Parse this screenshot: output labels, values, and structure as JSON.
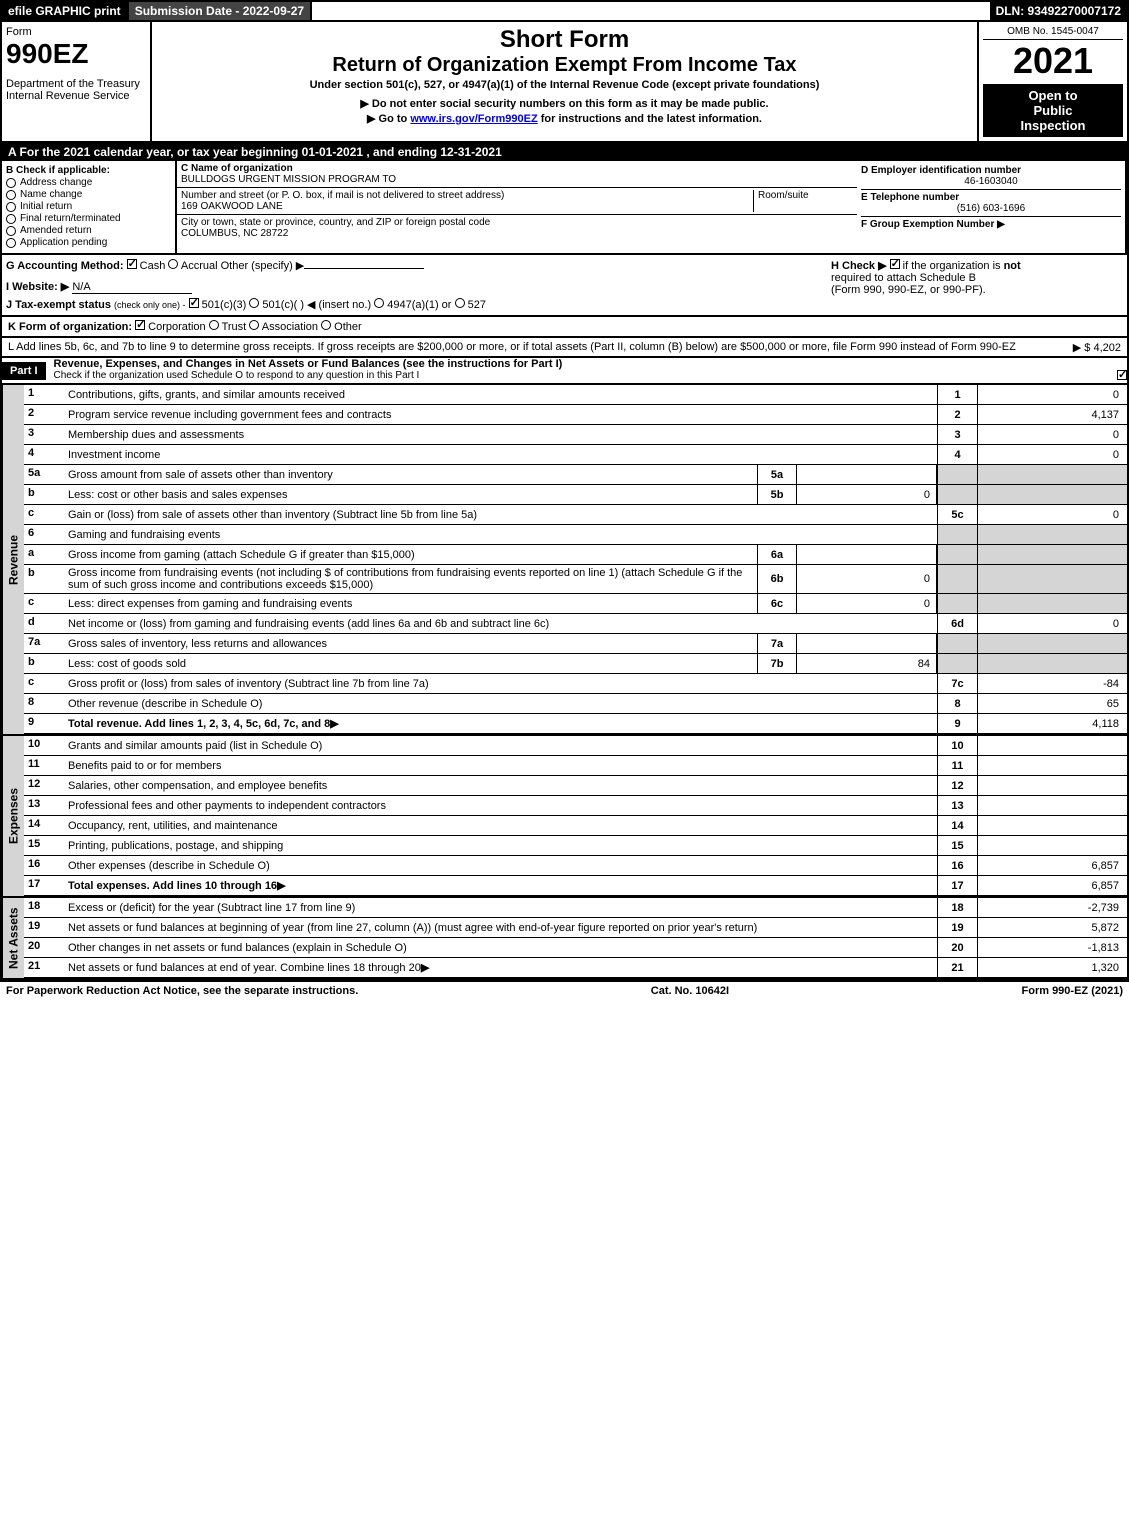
{
  "top": {
    "efile": "efile GRAPHIC print",
    "submission": "Submission Date - 2022-09-27",
    "dln": "DLN: 93492270007172"
  },
  "header": {
    "form_label": "Form",
    "form_number": "990EZ",
    "dept1": "Department of the Treasury",
    "dept2": "Internal Revenue Service",
    "short_form": "Short Form",
    "title": "Return of Organization Exempt From Income Tax",
    "sub1": "Under section 501(c), 527, or 4947(a)(1) of the Internal Revenue Code (except private foundations)",
    "sub2": "▶ Do not enter social security numbers on this form as it may be made public.",
    "sub3_pre": "▶ Go to ",
    "sub3_link": "www.irs.gov/Form990EZ",
    "sub3_post": " for instructions and the latest information.",
    "omb": "OMB No. 1545-0047",
    "year": "2021",
    "open1": "Open to",
    "open2": "Public",
    "open3": "Inspection"
  },
  "row_a": "A  For the 2021 calendar year, or tax year beginning 01-01-2021 , and ending 12-31-2021",
  "col_b": {
    "label": "B  Check if applicable:",
    "items": [
      "Address change",
      "Name change",
      "Initial return",
      "Final return/terminated",
      "Amended return",
      "Application pending"
    ]
  },
  "col_c": {
    "name_label": "C Name of organization",
    "name": "BULLDOGS URGENT MISSION PROGRAM TO",
    "street_label": "Number and street (or P. O. box, if mail is not delivered to street address)",
    "room_label": "Room/suite",
    "street": "169 OAKWOOD LANE",
    "city_label": "City or town, state or province, country, and ZIP or foreign postal code",
    "city": "COLUMBUS, NC  28722"
  },
  "col_d": {
    "ein_label": "D Employer identification number",
    "ein": "46-1603040",
    "phone_label": "E Telephone number",
    "phone": "(516) 603-1696",
    "group_label": "F Group Exemption Number   ▶"
  },
  "section_g": {
    "g_label": "G Accounting Method:",
    "g_cash": "Cash",
    "g_accrual": "Accrual",
    "g_other": "Other (specify) ▶",
    "i_label": "I Website: ▶",
    "i_value": "N/A",
    "j_label": "J Tax-exempt status",
    "j_note": "(check only one) -",
    "j1": "501(c)(3)",
    "j2": "501(c)(  ) ◀ (insert no.)",
    "j3": "4947(a)(1) or",
    "j4": "527",
    "h_label": "H  Check ▶",
    "h_text1": "if the organization is ",
    "h_text1b": "not",
    "h_text2": "required to attach Schedule B",
    "h_text3": "(Form 990, 990-EZ, or 990-PF)."
  },
  "k_line": {
    "label": "K Form of organization:",
    "opts": [
      "Corporation",
      "Trust",
      "Association",
      "Other"
    ]
  },
  "l_line": {
    "text": "L Add lines 5b, 6c, and 7b to line 9 to determine gross receipts. If gross receipts are $200,000 or more, or if total assets (Part II, column (B) below) are $500,000 or more, file Form 990 instead of Form 990-EZ",
    "amount": "▶ $ 4,202"
  },
  "part1": {
    "header": "Part I",
    "title": "Revenue, Expenses, and Changes in Net Assets or Fund Balances (see the instructions for Part I)",
    "check_note": "Check if the organization used Schedule O to respond to any question in this Part I"
  },
  "sections": {
    "revenue": "Revenue",
    "expenses": "Expenses",
    "netassets": "Net Assets"
  },
  "lines": [
    {
      "n": "1",
      "d": "Contributions, gifts, grants, and similar amounts received",
      "r": "1",
      "v": "0"
    },
    {
      "n": "2",
      "d": "Program service revenue including government fees and contracts",
      "r": "2",
      "v": "4,137"
    },
    {
      "n": "3",
      "d": "Membership dues and assessments",
      "r": "3",
      "v": "0"
    },
    {
      "n": "4",
      "d": "Investment income",
      "r": "4",
      "v": "0"
    },
    {
      "n": "5a",
      "d": "Gross amount from sale of assets other than inventory",
      "sc": "5a",
      "sv": ""
    },
    {
      "n": "b",
      "d": "Less: cost or other basis and sales expenses",
      "sc": "5b",
      "sv": "0"
    },
    {
      "n": "c",
      "d": "Gain or (loss) from sale of assets other than inventory (Subtract line 5b from line 5a)",
      "r": "5c",
      "v": "0"
    },
    {
      "n": "6",
      "d": "Gaming and fundraising events"
    },
    {
      "n": "a",
      "d": "Gross income from gaming (attach Schedule G if greater than $15,000)",
      "sc": "6a",
      "sv": ""
    },
    {
      "n": "b",
      "d": "Gross income from fundraising events (not including $                      of contributions from fundraising events reported on line 1) (attach Schedule G if the sum of such gross income and contributions exceeds $15,000)",
      "sc": "6b",
      "sv": "0"
    },
    {
      "n": "c",
      "d": "Less: direct expenses from gaming and fundraising events",
      "sc": "6c",
      "sv": "0"
    },
    {
      "n": "d",
      "d": "Net income or (loss) from gaming and fundraising events (add lines 6a and 6b and subtract line 6c)",
      "r": "6d",
      "v": "0"
    },
    {
      "n": "7a",
      "d": "Gross sales of inventory, less returns and allowances",
      "sc": "7a",
      "sv": ""
    },
    {
      "n": "b",
      "d": "Less: cost of goods sold",
      "sc": "7b",
      "sv": "84"
    },
    {
      "n": "c",
      "d": "Gross profit or (loss) from sales of inventory (Subtract line 7b from line 7a)",
      "r": "7c",
      "v": "-84"
    },
    {
      "n": "8",
      "d": "Other revenue (describe in Schedule O)",
      "r": "8",
      "v": "65"
    },
    {
      "n": "9",
      "d": "Total revenue. Add lines 1, 2, 3, 4, 5c, 6d, 7c, and 8",
      "r": "9",
      "v": "4,118",
      "arrow": true,
      "bold": true
    }
  ],
  "exp_lines": [
    {
      "n": "10",
      "d": "Grants and similar amounts paid (list in Schedule O)",
      "r": "10",
      "v": ""
    },
    {
      "n": "11",
      "d": "Benefits paid to or for members",
      "r": "11",
      "v": ""
    },
    {
      "n": "12",
      "d": "Salaries, other compensation, and employee benefits",
      "r": "12",
      "v": ""
    },
    {
      "n": "13",
      "d": "Professional fees and other payments to independent contractors",
      "r": "13",
      "v": ""
    },
    {
      "n": "14",
      "d": "Occupancy, rent, utilities, and maintenance",
      "r": "14",
      "v": ""
    },
    {
      "n": "15",
      "d": "Printing, publications, postage, and shipping",
      "r": "15",
      "v": ""
    },
    {
      "n": "16",
      "d": "Other expenses (describe in Schedule O)",
      "r": "16",
      "v": "6,857"
    },
    {
      "n": "17",
      "d": "Total expenses. Add lines 10 through 16",
      "r": "17",
      "v": "6,857",
      "arrow": true,
      "bold": true
    }
  ],
  "net_lines": [
    {
      "n": "18",
      "d": "Excess or (deficit) for the year (Subtract line 17 from line 9)",
      "r": "18",
      "v": "-2,739"
    },
    {
      "n": "19",
      "d": "Net assets or fund balances at beginning of year (from line 27, column (A)) (must agree with end-of-year figure reported on prior year's return)",
      "r": "19",
      "v": "5,872"
    },
    {
      "n": "20",
      "d": "Other changes in net assets or fund balances (explain in Schedule O)",
      "r": "20",
      "v": "-1,813"
    },
    {
      "n": "21",
      "d": "Net assets or fund balances at end of year. Combine lines 18 through 20",
      "r": "21",
      "v": "1,320",
      "arrow": true
    }
  ],
  "footer": {
    "left": "For Paperwork Reduction Act Notice, see the separate instructions.",
    "mid": "Cat. No. 10642I",
    "right_pre": "Form ",
    "right_bold": "990-EZ",
    "right_post": " (2021)"
  }
}
